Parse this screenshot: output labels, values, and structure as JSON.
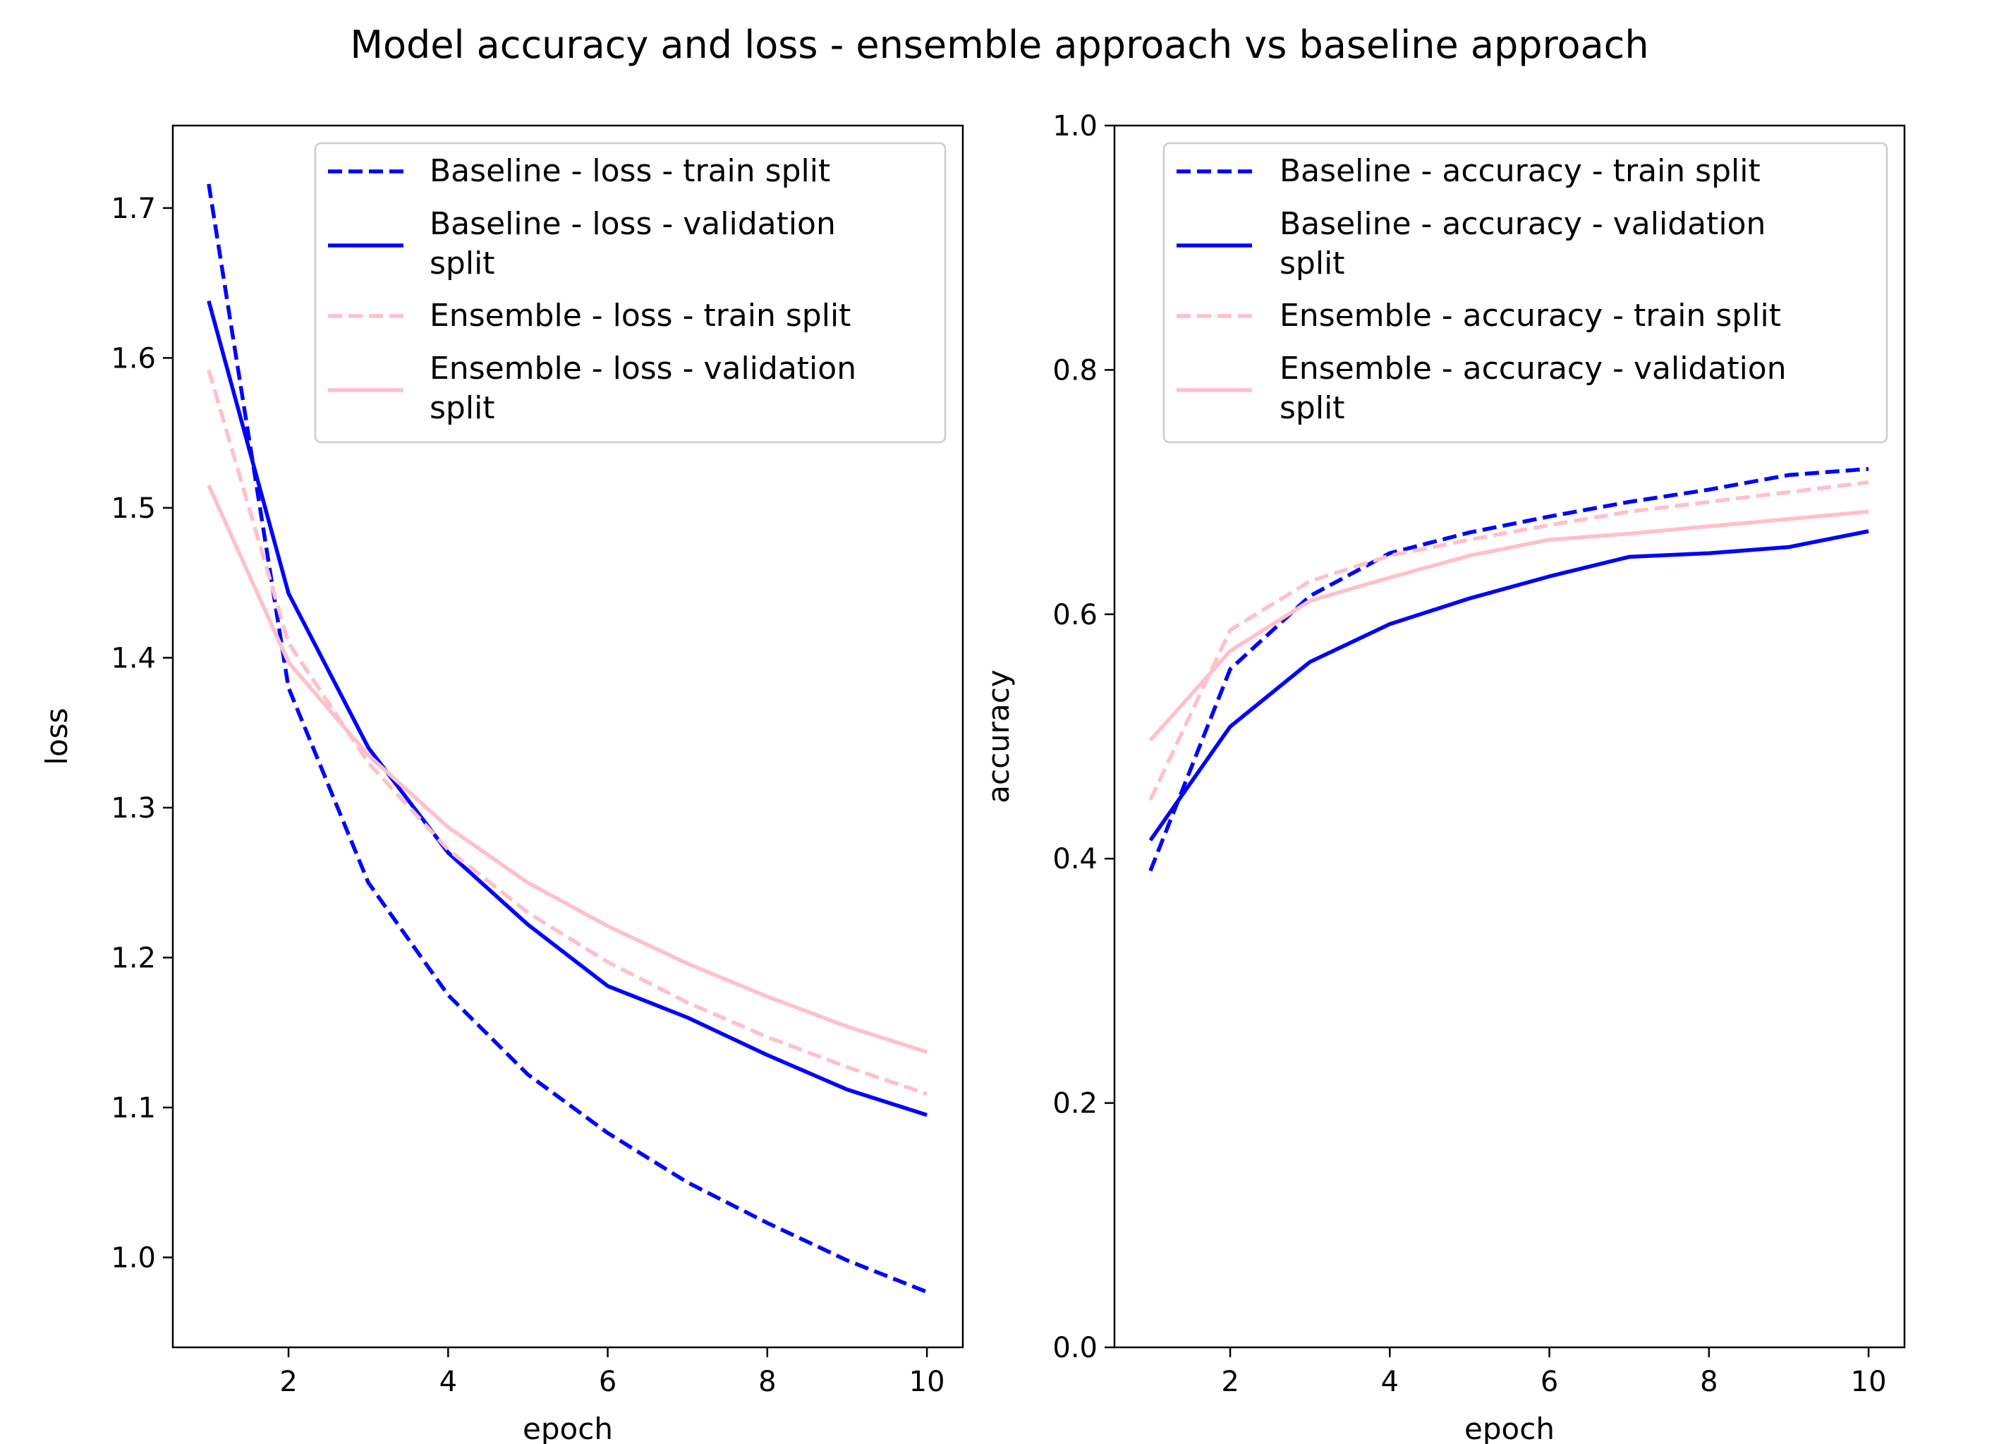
{
  "figure": {
    "title": "Model accuracy and loss - ensemble approach vs baseline approach"
  },
  "colors": {
    "baseline": "#0000ff",
    "ensemble": "#ffc0cb"
  },
  "chart_data": [
    {
      "type": "line",
      "xlabel": "epoch",
      "ylabel": "loss",
      "xlim": [
        0.55,
        10.45
      ],
      "ylim": [
        0.94,
        1.755
      ],
      "xticks": [
        2,
        4,
        6,
        8,
        10
      ],
      "yticks": [
        1.0,
        1.1,
        1.2,
        1.3,
        1.4,
        1.5,
        1.6,
        1.7
      ],
      "ytick_format": 1,
      "legend": "top-right",
      "grid": false,
      "series": [
        {
          "name": "Baseline - loss - train split",
          "style": "dashed",
          "color": "#0000ff",
          "x": [
            1,
            2,
            3,
            4,
            5,
            6,
            7,
            8,
            9,
            10
          ],
          "y": [
            1.716,
            1.38,
            1.25,
            1.175,
            1.122,
            1.083,
            1.05,
            1.023,
            0.998,
            0.977
          ]
        },
        {
          "name": "Baseline - loss - validation split",
          "style": "solid",
          "color": "#0000ff",
          "x": [
            1,
            2,
            3,
            4,
            5,
            6,
            7,
            8,
            9,
            10
          ],
          "y": [
            1.638,
            1.443,
            1.34,
            1.27,
            1.222,
            1.181,
            1.16,
            1.135,
            1.112,
            1.095
          ]
        },
        {
          "name": "Ensemble - loss - train split",
          "style": "dashed",
          "color": "#ffc0cb",
          "x": [
            1,
            2,
            3,
            4,
            5,
            6,
            7,
            8,
            9,
            10
          ],
          "y": [
            1.592,
            1.41,
            1.33,
            1.272,
            1.23,
            1.197,
            1.17,
            1.147,
            1.127,
            1.109
          ]
        },
        {
          "name": "Ensemble - loss - validation split",
          "style": "solid",
          "color": "#ffc0cb",
          "x": [
            1,
            2,
            3,
            4,
            5,
            6,
            7,
            8,
            9,
            10
          ],
          "y": [
            1.515,
            1.397,
            1.335,
            1.287,
            1.25,
            1.221,
            1.196,
            1.174,
            1.154,
            1.137
          ]
        }
      ]
    },
    {
      "type": "line",
      "xlabel": "epoch",
      "ylabel": "accuracy",
      "xlim": [
        0.55,
        10.45
      ],
      "ylim": [
        0.0,
        1.0
      ],
      "xticks": [
        2,
        4,
        6,
        8,
        10
      ],
      "yticks": [
        0.0,
        0.2,
        0.4,
        0.6,
        0.8,
        1.0
      ],
      "ytick_format": 1,
      "legend": "top-right",
      "grid": false,
      "series": [
        {
          "name": "Baseline - accuracy - train split",
          "style": "dashed",
          "color": "#0000ff",
          "x": [
            1,
            2,
            3,
            4,
            5,
            6,
            7,
            8,
            9,
            10
          ],
          "y": [
            0.39,
            0.555,
            0.615,
            0.65,
            0.667,
            0.68,
            0.692,
            0.702,
            0.714,
            0.719
          ]
        },
        {
          "name": "Baseline - accuracy - validation split",
          "style": "solid",
          "color": "#0000ff",
          "x": [
            1,
            2,
            3,
            4,
            5,
            6,
            7,
            8,
            9,
            10
          ],
          "y": [
            0.415,
            0.508,
            0.561,
            0.592,
            0.613,
            0.631,
            0.647,
            0.65,
            0.655,
            0.668
          ]
        },
        {
          "name": "Ensemble - accuracy - train split",
          "style": "dashed",
          "color": "#ffc0cb",
          "x": [
            1,
            2,
            3,
            4,
            5,
            6,
            7,
            8,
            9,
            10
          ],
          "y": [
            0.448,
            0.587,
            0.627,
            0.648,
            0.661,
            0.673,
            0.684,
            0.692,
            0.7,
            0.708
          ]
        },
        {
          "name": "Ensemble - accuracy - validation split",
          "style": "solid",
          "color": "#ffc0cb",
          "x": [
            1,
            2,
            3,
            4,
            5,
            6,
            7,
            8,
            9,
            10
          ],
          "y": [
            0.497,
            0.57,
            0.611,
            0.63,
            0.648,
            0.661,
            0.666,
            0.672,
            0.678,
            0.684
          ]
        }
      ]
    }
  ]
}
